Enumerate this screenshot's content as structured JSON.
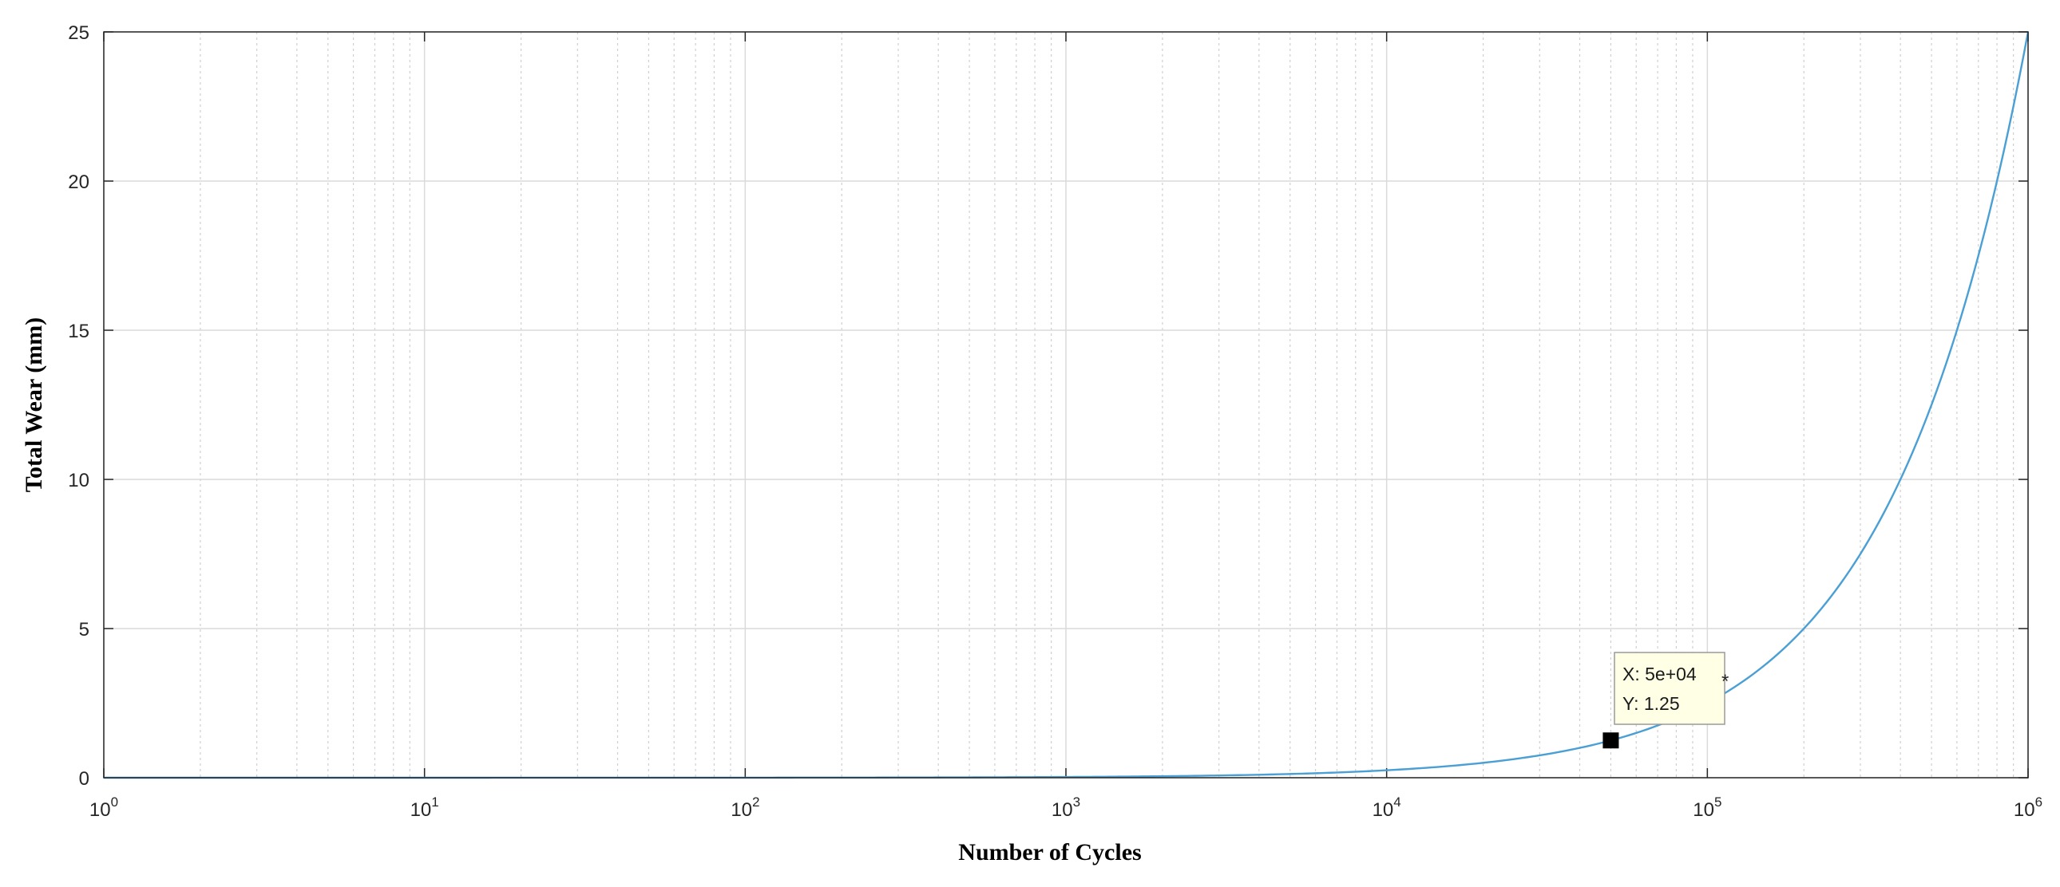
{
  "chart_data": {
    "type": "line",
    "xlabel": "Number of Cycles",
    "ylabel": "Total Wear (mm)",
    "xscale": "log",
    "xlim": [
      1,
      1000000
    ],
    "ylim": [
      0,
      25
    ],
    "grid": true,
    "x_ticks": [
      {
        "base": "10",
        "exp": "0"
      },
      {
        "base": "10",
        "exp": "1"
      },
      {
        "base": "10",
        "exp": "2"
      },
      {
        "base": "10",
        "exp": "3"
      },
      {
        "base": "10",
        "exp": "4"
      },
      {
        "base": "10",
        "exp": "5"
      },
      {
        "base": "10",
        "exp": "6"
      }
    ],
    "y_ticks": [
      "0",
      "5",
      "10",
      "15",
      "20",
      "25"
    ],
    "series": [
      {
        "color": "#4a9fd5",
        "model": "y = 25 * (x / 1000000)",
        "x": [
          1,
          10,
          100,
          1000,
          10000,
          50000,
          100000,
          200000,
          500000,
          1000000
        ],
        "y": [
          2.5e-05,
          0.00025,
          0.0025,
          0.025,
          0.25,
          1.25,
          2.5,
          5,
          12.5,
          25
        ]
      }
    ],
    "datatip": {
      "x": 50000,
      "y": 1.25,
      "x_text": "X: 5e+04",
      "y_text": "Y: 1.25"
    }
  }
}
